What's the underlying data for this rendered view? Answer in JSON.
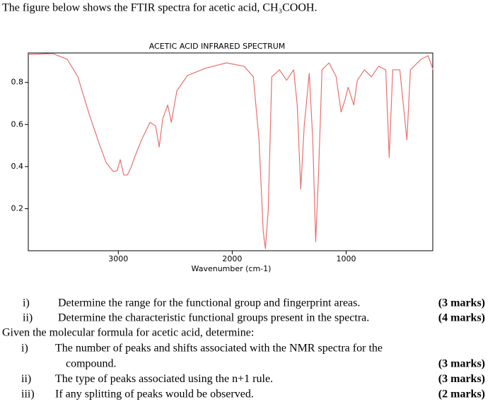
{
  "intro": "The figure below shows the FTIR spectra for acetic acid, CH₃COOH.",
  "chart_data": {
    "type": "line",
    "title": "ACETIC ACID  INFRARED SPECTRUM",
    "x_label": "Wavenumber (cm-1)",
    "xlim": [
      3790,
      240
    ],
    "ylim": [
      0,
      0.94
    ],
    "xticks": [
      3000,
      2000,
      1000
    ],
    "yticks": [
      0.2,
      0.4,
      0.6,
      0.8
    ],
    "x": [
      3790,
      3573,
      3448,
      3355,
      3262,
      3169,
      3107,
      3045,
      3010,
      2983,
      2952,
      2921,
      2890,
      2858,
      2796,
      2722,
      2672,
      2641,
      2610,
      2566,
      2535,
      2486,
      2393,
      2237,
      2051,
      1896,
      1815,
      1765,
      1728,
      1709,
      1684,
      1653,
      1585,
      1523,
      1461,
      1430,
      1399,
      1368,
      1324,
      1293,
      1268,
      1243,
      1212,
      1150,
      1088,
      1045,
      1014,
      983,
      933,
      902,
      840,
      778,
      716,
      653,
      622,
      591,
      529,
      467,
      436,
      343,
      281,
      237
    ],
    "series": [
      {
        "color": "#e8706f",
        "values": [
          0.933,
          0.937,
          0.91,
          0.827,
          0.66,
          0.51,
          0.42,
          0.377,
          0.38,
          0.433,
          0.36,
          0.36,
          0.393,
          0.443,
          0.527,
          0.61,
          0.593,
          0.493,
          0.627,
          0.693,
          0.61,
          0.76,
          0.833,
          0.867,
          0.893,
          0.877,
          0.827,
          0.527,
          0.093,
          0.01,
          0.193,
          0.827,
          0.86,
          0.81,
          0.86,
          0.693,
          0.293,
          0.593,
          0.843,
          0.527,
          0.043,
          0.36,
          0.86,
          0.893,
          0.827,
          0.66,
          0.71,
          0.777,
          0.693,
          0.81,
          0.86,
          0.827,
          0.877,
          0.86,
          0.443,
          0.86,
          0.86,
          0.527,
          0.86,
          0.91,
          0.927,
          0.86
        ]
      }
    ]
  },
  "questions_a": [
    {
      "numeral": "i)",
      "text": "Determine the range for the functional group and fingerprint areas.",
      "marks": "(3 marks)"
    },
    {
      "numeral": "ii)",
      "text": "Determine the characteristic functional groups present in the spectra.",
      "marks": "(4 marks)"
    }
  ],
  "given": "Given the molecular formula for acetic acid, determine:",
  "questions_b": [
    {
      "numeral": "i)",
      "lines": [
        "The number of peaks and shifts associated with the NMR spectra for the",
        "compound."
      ],
      "marks": "(3 marks)"
    },
    {
      "numeral": "ii)",
      "lines": [
        "The type of peaks associated using the n+1 rule."
      ],
      "marks": "(3 marks)"
    },
    {
      "numeral": "iii)",
      "lines": [
        "If any splitting of peaks would be observed."
      ],
      "marks": "(2 marks)"
    }
  ]
}
